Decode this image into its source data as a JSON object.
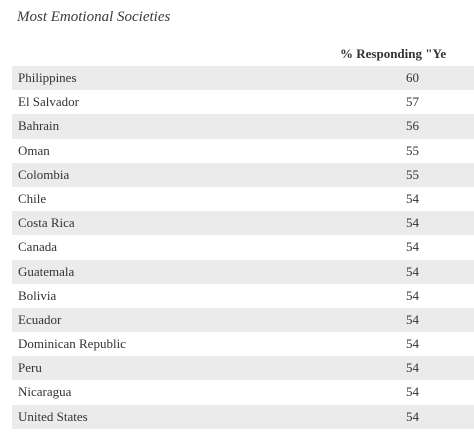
{
  "chart_data": {
    "type": "table",
    "title": "Most Emotional Societies",
    "columns": [
      "",
      "% Responding \"Yes\""
    ],
    "header_visible": "% Responding \"Ye",
    "rows": [
      {
        "country": "Philippines",
        "value": 60
      },
      {
        "country": "El Salvador",
        "value": 57
      },
      {
        "country": "Bahrain",
        "value": 56
      },
      {
        "country": "Oman",
        "value": 55
      },
      {
        "country": "Colombia",
        "value": 55
      },
      {
        "country": "Chile",
        "value": 54
      },
      {
        "country": "Costa Rica",
        "value": 54
      },
      {
        "country": "Canada",
        "value": 54
      },
      {
        "country": "Guatemala",
        "value": 54
      },
      {
        "country": "Bolivia",
        "value": 54
      },
      {
        "country": "Ecuador",
        "value": 54
      },
      {
        "country": "Dominican Republic",
        "value": 54
      },
      {
        "country": "Peru",
        "value": 54
      },
      {
        "country": "Nicaragua",
        "value": 54
      },
      {
        "country": "United States",
        "value": 54
      }
    ],
    "colors": {
      "shaded_row": "#ebebeb",
      "plain_row": "#ffffff"
    }
  }
}
